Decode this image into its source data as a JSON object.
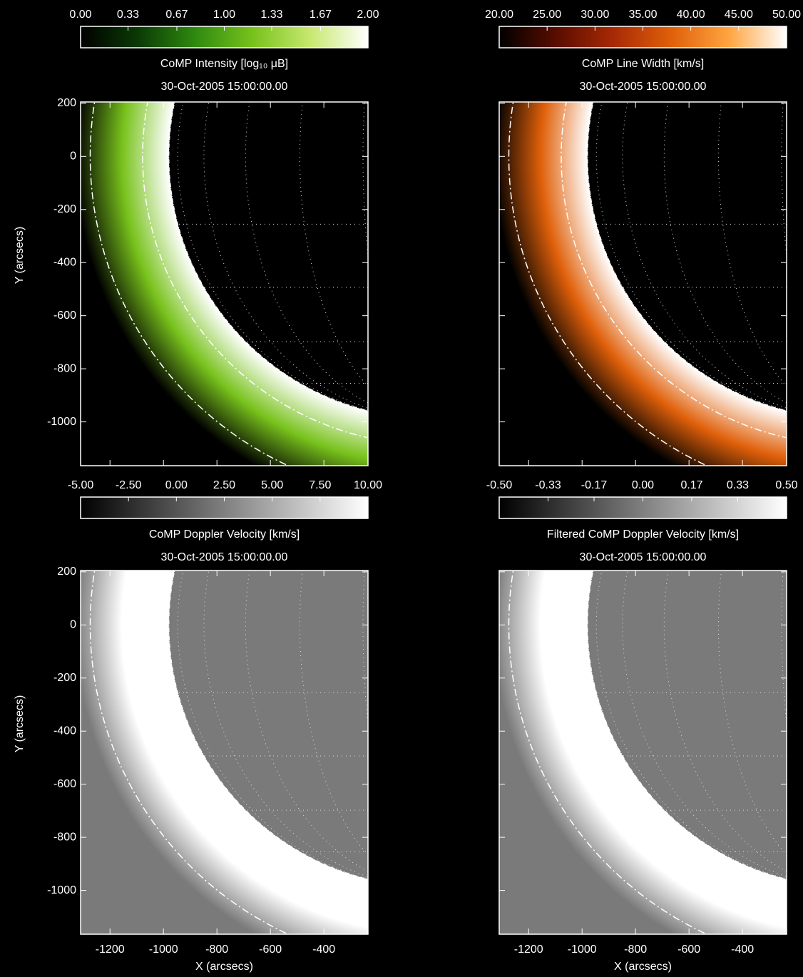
{
  "chart_data": [
    {
      "type": "image",
      "title": "CoMP Intensity [log₁₀ μB]",
      "subtitle": "30-Oct-2005 15:00:00.00",
      "clim": [
        0,
        2
      ],
      "cticks": [
        {
          "value": 0,
          "label": "0.00"
        },
        {
          "value": 0.33,
          "label": "0.33"
        },
        {
          "value": 0.67,
          "label": "0.67"
        },
        {
          "value": 1,
          "label": "1.00"
        },
        {
          "value": 1.33,
          "label": "1.33"
        },
        {
          "value": 1.67,
          "label": "1.67"
        },
        {
          "value": 2,
          "label": "2.00"
        }
      ],
      "colormap": [
        "#000000",
        "#0b3a05",
        "#2f8a10",
        "#78c21c",
        "#c8e870",
        "#ffffff"
      ],
      "background": "#000000",
      "xlim": [
        -1310,
        -235
      ],
      "ylim": [
        -1165,
        205
      ],
      "xticks": [
        -1200,
        -1000,
        -800,
        -600,
        -400
      ],
      "yticks": [
        200,
        0,
        -200,
        -400,
        -600,
        -800,
        -1000
      ],
      "xtick_labels": false,
      "ytick_labels": true,
      "ylabel": "Y (arcsecs)"
    },
    {
      "type": "image",
      "title": "CoMP Line Width [km/s]",
      "subtitle": "30-Oct-2005 15:00:00.00",
      "clim": [
        20,
        50
      ],
      "cticks": [
        {
          "value": 20,
          "label": "20.00"
        },
        {
          "value": 25,
          "label": "25.00"
        },
        {
          "value": 30,
          "label": "30.00"
        },
        {
          "value": 35,
          "label": "35.00"
        },
        {
          "value": 40,
          "label": "40.00"
        },
        {
          "value": 45,
          "label": "45.00"
        },
        {
          "value": 50,
          "label": "50.00"
        }
      ],
      "colormap": [
        "#000000",
        "#5a0d00",
        "#a82a05",
        "#e0600a",
        "#ffa540",
        "#ffffff"
      ],
      "background": "#000000",
      "xlim": [
        -1310,
        -235
      ],
      "ylim": [
        -1165,
        205
      ],
      "xticks": [
        -1200,
        -1000,
        -800,
        -600,
        -400
      ],
      "yticks": [
        200,
        0,
        -200,
        -400,
        -600,
        -800,
        -1000
      ],
      "xtick_labels": false,
      "ytick_labels": false
    },
    {
      "type": "image",
      "title": "CoMP Doppler Velocity [km/s]",
      "subtitle": "30-Oct-2005 15:00:00.00",
      "clim": [
        -5,
        10
      ],
      "cticks": [
        {
          "value": -5,
          "label": "-5.00"
        },
        {
          "value": -2.5,
          "label": "-2.50"
        },
        {
          "value": 0,
          "label": "0.00"
        },
        {
          "value": 2.5,
          "label": "2.50"
        },
        {
          "value": 5,
          "label": "5.00"
        },
        {
          "value": 7.5,
          "label": "7.50"
        },
        {
          "value": 10,
          "label": "10.00"
        }
      ],
      "colormap": [
        "#000000",
        "#ffffff"
      ],
      "background": "#7a7a7a",
      "xlim": [
        -1310,
        -235
      ],
      "ylim": [
        -1165,
        205
      ],
      "xticks": [
        -1200,
        -1000,
        -800,
        -600,
        -400
      ],
      "yticks": [
        200,
        0,
        -200,
        -400,
        -600,
        -800,
        -1000
      ],
      "xtick_labels": true,
      "ytick_labels": true,
      "xlabel": "X (arcsecs)",
      "ylabel": "Y (arcsecs)"
    },
    {
      "type": "image",
      "title": "Filtered CoMP Doppler Velocity [km/s]",
      "subtitle": "30-Oct-2005 15:00:00.00",
      "clim": [
        -0.5,
        0.5
      ],
      "cticks": [
        {
          "value": -0.5,
          "label": "-0.50"
        },
        {
          "value": -0.33,
          "label": "-0.33"
        },
        {
          "value": -0.17,
          "label": "-0.17"
        },
        {
          "value": 0,
          "label": "0.00"
        },
        {
          "value": 0.17,
          "label": "0.17"
        },
        {
          "value": 0.33,
          "label": "0.33"
        },
        {
          "value": 0.5,
          "label": "0.50"
        }
      ],
      "colormap": [
        "#000000",
        "#ffffff"
      ],
      "background": "#7a7a7a",
      "xlim": [
        -1310,
        -235
      ],
      "ylim": [
        -1165,
        205
      ],
      "xticks": [
        -1200,
        -1000,
        -800,
        -600,
        -400
      ],
      "yticks": [
        200,
        0,
        -200,
        -400,
        -600,
        -800,
        -1000
      ],
      "xtick_labels": true,
      "ytick_labels": false,
      "xlabel": "X (arcsecs)"
    }
  ]
}
